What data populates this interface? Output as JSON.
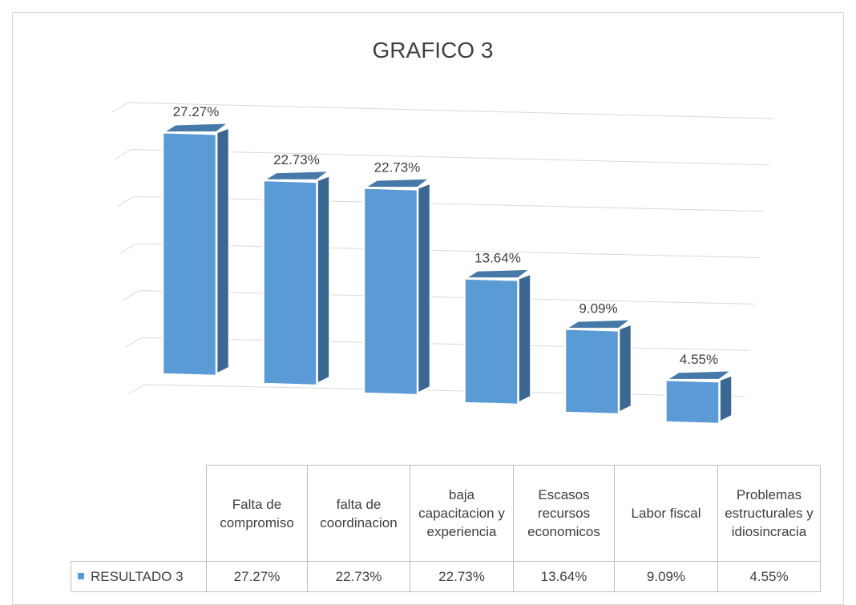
{
  "chart_data": {
    "type": "bar3d",
    "title": "GRAFICO 3",
    "categories": [
      "Falta de compromiso",
      "falta de coordinacion",
      "baja capacitacion y experiencia",
      "Escasos recursos economicos",
      "Labor fiscal",
      "Problemas estructurales y idiosincracia"
    ],
    "series": [
      {
        "name": "RESULTADO 3",
        "color": "#5b9bd5",
        "values": [
          27.27,
          22.73,
          22.73,
          13.64,
          9.09,
          4.55
        ],
        "value_labels": [
          "27.27%",
          "22.73%",
          "22.73%",
          "13.64%",
          "9.09%",
          "4.55%"
        ]
      }
    ],
    "ylim": [
      0,
      30
    ],
    "yticks": [
      0,
      5,
      10,
      15,
      20,
      25,
      30
    ],
    "grid": true,
    "data_table": true
  }
}
